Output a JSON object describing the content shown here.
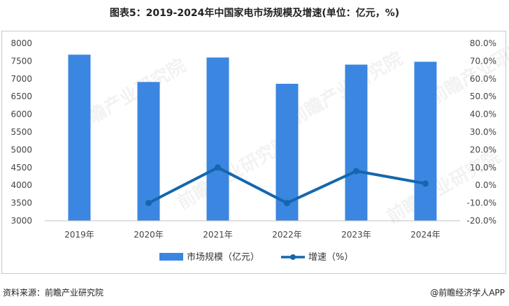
{
  "title": "图表5：2019-2024年中国家电市场规模及增速(单位：亿元，%)",
  "source": "资料来源：前瞻产业研究院",
  "credit": "@前瞻经济学人APP",
  "watermark": "前瞻产业研究院",
  "colors": {
    "bar": "#3a86e0",
    "line": "#1467ad",
    "grid": "#d9d9d9"
  },
  "chart_data": {
    "type": "bar",
    "categories": [
      "2019年",
      "2020年",
      "2021年",
      "2022年",
      "2023年",
      "2024年"
    ],
    "series": [
      {
        "name": "市场规模（亿元）",
        "type": "bar",
        "axis": "left",
        "values": [
          7680,
          6910,
          7600,
          6860,
          7400,
          7480
        ]
      },
      {
        "name": "增速（%）",
        "type": "line",
        "axis": "right",
        "values": [
          null,
          -10.0,
          10.0,
          -10.0,
          8.0,
          1.0
        ]
      }
    ],
    "y_left": {
      "min": 3000,
      "max": 8000,
      "step": 500,
      "ticks": [
        "3000",
        "3500",
        "4000",
        "4500",
        "5000",
        "5500",
        "6000",
        "6500",
        "7000",
        "7500",
        "8000"
      ]
    },
    "y_right": {
      "min": -20,
      "max": 80,
      "step": 10,
      "ticks": [
        "-20.0%",
        "-10.0%",
        "0.0%",
        "10.0%",
        "20.0%",
        "30.0%",
        "40.0%",
        "50.0%",
        "60.0%",
        "70.0%",
        "80.0%"
      ]
    },
    "legend": "bottom-center",
    "grid": false
  }
}
